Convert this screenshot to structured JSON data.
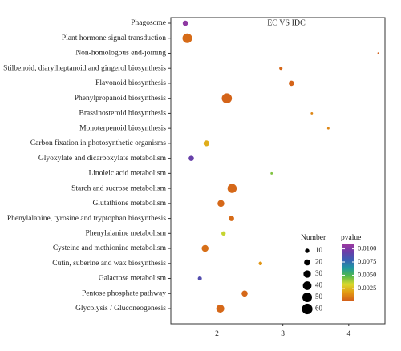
{
  "chart_data": {
    "type": "scatter",
    "title": "EC VS IDC",
    "xlabel": "",
    "ylabel": "",
    "xlim": [
      1.3,
      4.55
    ],
    "x_ticks": [
      2,
      3,
      4
    ],
    "grid": false,
    "categories": [
      "Phagosome",
      "Plant hormone signal transduction",
      "Non-homologous end-joining",
      "Stilbenoid, diarylheptanoid and gingerol biosynthesis",
      "Flavonoid biosynthesis",
      "Phenylpropanoid biosynthesis",
      "Brassinosteroid biosynthesis",
      "Monoterpenoid biosynthesis",
      "Carbon fixation in photosynthetic organisms",
      "Glyoxylate and dicarboxylate metabolism",
      "Linoleic acid metabolism",
      "Starch and sucrose metabolism",
      "Glutathione metabolism",
      "Phenylalanine, tyrosine and tryptophan biosynthesis",
      "Phenylalanine metabolism",
      "Cysteine and methionine metabolism",
      "Cutin, suberine and wax biosynthesis",
      "Galactose metabolism",
      "Pentose phosphate pathway",
      "Glycolysis / Gluconeogenesis"
    ],
    "points": [
      {
        "pathway": "Phagosome",
        "x": 1.52,
        "number": 15,
        "pvalue": 0.0105
      },
      {
        "pathway": "Plant hormone signal transduction",
        "x": 1.55,
        "number": 50,
        "pvalue": 0.0005
      },
      {
        "pathway": "Non-homologous end-joining",
        "x": 4.45,
        "number": 2,
        "pvalue": 0.0002
      },
      {
        "pathway": "Stilbenoid, diarylheptanoid and gingerol biosynthesis",
        "x": 2.97,
        "number": 6,
        "pvalue": 0.0004
      },
      {
        "pathway": "Flavonoid biosynthesis",
        "x": 3.13,
        "number": 15,
        "pvalue": 0.0003
      },
      {
        "pathway": "Phenylpropanoid biosynthesis",
        "x": 2.15,
        "number": 55,
        "pvalue": 0.0003
      },
      {
        "pathway": "Brassinosteroid biosynthesis",
        "x": 3.44,
        "number": 3,
        "pvalue": 0.0012
      },
      {
        "pathway": "Monoterpenoid biosynthesis",
        "x": 3.69,
        "number": 3,
        "pvalue": 0.0012
      },
      {
        "pathway": "Carbon fixation in photosynthetic organisms",
        "x": 1.84,
        "number": 18,
        "pvalue": 0.0022
      },
      {
        "pathway": "Glyoxylate and dicarboxylate metabolism",
        "x": 1.61,
        "number": 15,
        "pvalue": 0.0093
      },
      {
        "pathway": "Linoleic acid metabolism",
        "x": 2.83,
        "number": 3,
        "pvalue": 0.0043
      },
      {
        "pathway": "Starch and sucrose metabolism",
        "x": 2.23,
        "number": 45,
        "pvalue": 0.0004
      },
      {
        "pathway": "Glutathione metabolism",
        "x": 2.06,
        "number": 25,
        "pvalue": 0.0004
      },
      {
        "pathway": "Phenylalanine, tyrosine and tryptophan biosynthesis",
        "x": 2.22,
        "number": 15,
        "pvalue": 0.0005
      },
      {
        "pathway": "Phenylalanine metabolism",
        "x": 2.1,
        "number": 10,
        "pvalue": 0.0035
      },
      {
        "pathway": "Cysteine and methionine metabolism",
        "x": 1.82,
        "number": 25,
        "pvalue": 0.0006
      },
      {
        "pathway": "Cutin, suberine and wax biosynthesis",
        "x": 2.66,
        "number": 7,
        "pvalue": 0.0016
      },
      {
        "pathway": "Galactose metabolism",
        "x": 1.74,
        "number": 9,
        "pvalue": 0.0087
      },
      {
        "pathway": "Pentose phosphate pathway",
        "x": 2.42,
        "number": 20,
        "pvalue": 0.0004
      },
      {
        "pathway": "Glycolysis / Gluconeogenesis",
        "x": 2.05,
        "number": 35,
        "pvalue": 0.0004
      }
    ],
    "size_legend": {
      "title": "Number",
      "values": [
        10,
        20,
        30,
        40,
        50,
        60
      ]
    },
    "color_legend": {
      "title": "pvalue",
      "ticks": [
        "0.0100",
        "0.0075",
        "0.0050",
        "0.0025"
      ],
      "tick_values": [
        0.01,
        0.0075,
        0.005,
        0.0025
      ],
      "range": [
        0.0002,
        0.011
      ],
      "colors_low_to_high": [
        "#d3601a",
        "#e39a12",
        "#d8d92c",
        "#52b84a",
        "#1f98a2",
        "#3a5fb4",
        "#6c3ca8",
        "#a0389f"
      ]
    },
    "legend_placement": "bottom-right"
  }
}
